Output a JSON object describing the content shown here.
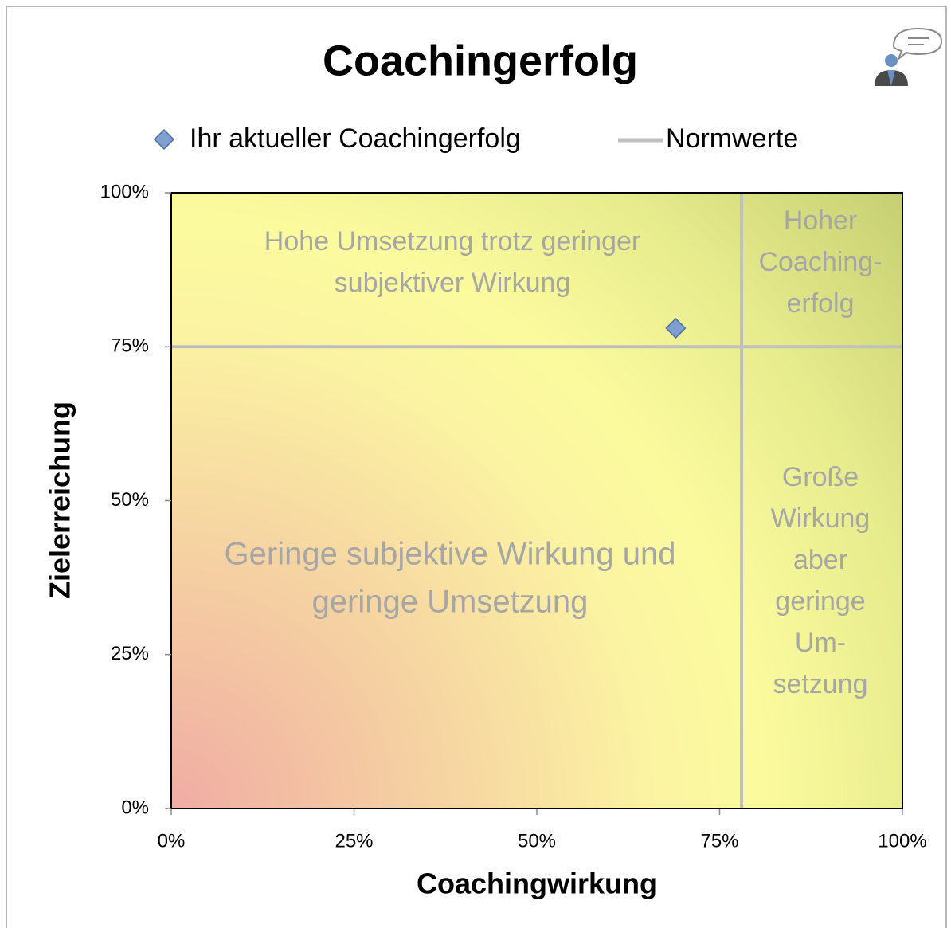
{
  "chart_data": {
    "type": "scatter",
    "title": "Coachingerfolg",
    "xlabel": "Coachingwirkung",
    "ylabel": "Zielerreichung",
    "series": [
      {
        "name": "Ihr aktueller Coachingerfolg",
        "color": "#7f9fd0",
        "x": [
          69
        ],
        "values": [
          78
        ]
      }
    ],
    "norms": {
      "name": "Normwerte",
      "color": "#bfbfbf",
      "x": 78,
      "y": 75
    },
    "xlim": [
      0,
      100
    ],
    "ylim": [
      0,
      100
    ],
    "xticks": [
      {
        "value": 0,
        "label": "0%"
      },
      {
        "value": 25,
        "label": "25%"
      },
      {
        "value": 50,
        "label": "50%"
      },
      {
        "value": 75,
        "label": "75%"
      },
      {
        "value": 100,
        "label": "100%"
      }
    ],
    "yticks": [
      {
        "value": 0,
        "label": "0%"
      },
      {
        "value": 25,
        "label": "25%"
      },
      {
        "value": 50,
        "label": "50%"
      },
      {
        "value": 75,
        "label": "75%"
      },
      {
        "value": 100,
        "label": "100%"
      }
    ],
    "annotations": [
      {
        "lines": [
          "Hohe Umsetzung trotz geringer",
          "subjektiver Wirkung"
        ]
      },
      {
        "lines": [
          "Hoher",
          "Coaching-",
          "erfolg"
        ]
      },
      {
        "lines": [
          "Geringe subjektive Wirkung und",
          "geringe Umsetzung"
        ]
      },
      {
        "lines": [
          "Große",
          "Wirkung",
          "aber",
          "geringe",
          "Um-",
          "setzung"
        ]
      }
    ]
  }
}
